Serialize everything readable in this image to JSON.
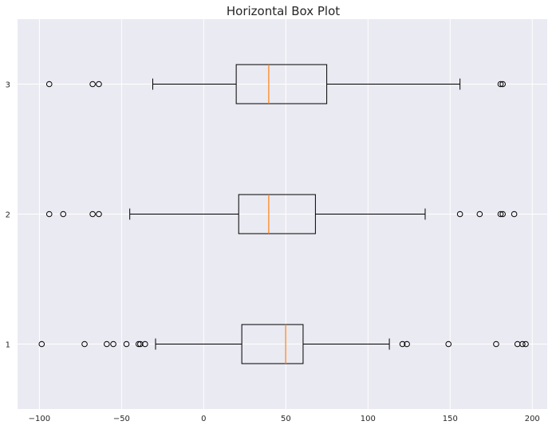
{
  "chart_data": {
    "type": "boxplot",
    "orientation": "horizontal",
    "title": "Horizontal Box Plot",
    "xlabel": "",
    "ylabel": "",
    "xlim": [
      -113.3,
      209.1
    ],
    "ylim": [
      0.5,
      3.5
    ],
    "xticks": [
      -100,
      -50,
      0,
      50,
      100,
      150,
      200
    ],
    "xtick_labels": [
      "−100",
      "−50",
      "0",
      "50",
      "100",
      "150",
      "200"
    ],
    "categories": [
      "1",
      "2",
      "3"
    ],
    "grid": true,
    "colors": {
      "background": "#eaeaf2",
      "grid": "#ffffff",
      "box": "#000000",
      "median": "#ff7f0e"
    },
    "boxes": [
      {
        "label": "1",
        "whisker_low": -29.3,
        "q1": 23.2,
        "median": 49.9,
        "q3": 60.5,
        "whisker_high": 113,
        "outliers": [
          -98.6,
          -72.5,
          -59,
          -55,
          -47,
          -39.6,
          -38.6,
          -35.7,
          121,
          123.7,
          149,
          178,
          191,
          194,
          196
        ]
      },
      {
        "label": "2",
        "whisker_low": -45,
        "q1": 21.3,
        "median": 39.6,
        "q3": 68,
        "whisker_high": 134.8,
        "outliers": [
          -94,
          -85.5,
          -67.6,
          -63.8,
          156,
          168,
          180.7,
          182,
          189
        ]
      },
      {
        "label": "3",
        "whisker_low": -31,
        "q1": 19.8,
        "median": 39.6,
        "q3": 74.9,
        "whisker_high": 156,
        "outliers": [
          -94,
          -67.6,
          -63.8,
          180.7,
          182
        ]
      }
    ]
  }
}
